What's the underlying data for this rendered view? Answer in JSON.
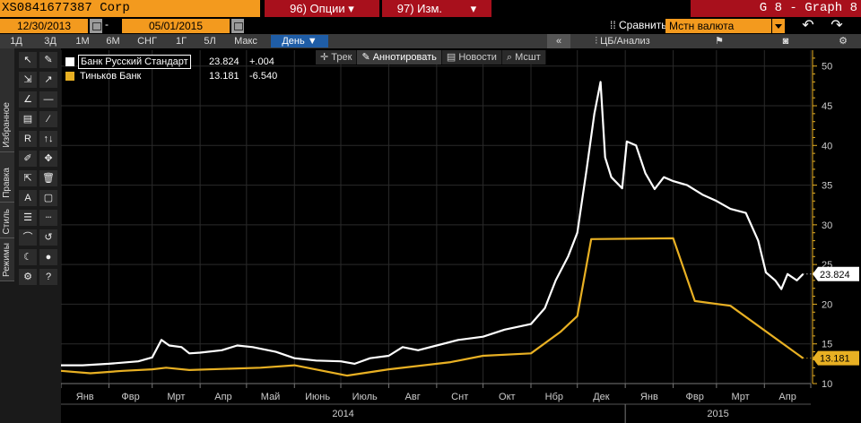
{
  "header": {
    "security": "XS0841677387 Corp",
    "options_label": "96) Опции ▾",
    "changes_label": "97) Изм.",
    "changes_arrow": "▾",
    "title": "G 8 - Graph 8"
  },
  "dates": {
    "start": "12/30/2013",
    "separator": "-",
    "end": "05/01/2015",
    "compare_label": "Сравнить",
    "currency": "Мстн валюта"
  },
  "periods": {
    "items": [
      "1Д",
      "3Д",
      "1М",
      "6М",
      "СНГ",
      "1Г",
      "5Л",
      "Макс"
    ],
    "active": "День ▼",
    "collapse": "«",
    "analysis": "ЦБ/Анализ"
  },
  "chart_tools": [
    "Трек",
    "Аннотировать",
    "Новости",
    "Мсшт"
  ],
  "sidebar_tabs": [
    "Избранное",
    "Правка",
    "Стиль",
    "Режимы"
  ],
  "tool_glyphs": [
    "↖",
    "✎",
    "⇲",
    "↗",
    "∠",
    "—",
    "▤",
    "⁄",
    "R",
    "↑↓",
    "✐",
    "✥",
    "⇱",
    "🗑",
    "A",
    "▢",
    "☰",
    "┈",
    "⌒",
    "↺",
    "☾",
    "●",
    "⚙",
    "?"
  ],
  "chart_data": {
    "type": "line",
    "x_range": [
      "2014-01-01",
      "2015-05-01"
    ],
    "ylim": [
      10,
      52
    ],
    "y_ticks": [
      10,
      15,
      20,
      25,
      30,
      35,
      40,
      45,
      50
    ],
    "month_labels": [
      "Янв",
      "Фвр",
      "Мрт",
      "Апр",
      "Май",
      "Июнь",
      "Июль",
      "Авг",
      "Снт",
      "Окт",
      "Нбр",
      "Дек",
      "Янв",
      "Фвр",
      "Мрт",
      "Апр"
    ],
    "year_labels": [
      "2014",
      "2015"
    ],
    "grid": true,
    "legend_position": "top-left",
    "series": [
      {
        "name": "Банк Русский Стандарт",
        "color": "#ffffff",
        "last": "23.824",
        "change": "+.004",
        "points": [
          [
            "2014-01-01",
            12.3
          ],
          [
            "2014-01-15",
            12.3
          ],
          [
            "2014-02-01",
            12.5
          ],
          [
            "2014-02-20",
            12.8
          ],
          [
            "2014-03-01",
            13.3
          ],
          [
            "2014-03-07",
            15.5
          ],
          [
            "2014-03-12",
            14.8
          ],
          [
            "2014-03-20",
            14.6
          ],
          [
            "2014-03-25",
            13.8
          ],
          [
            "2014-04-01",
            13.9
          ],
          [
            "2014-04-15",
            14.2
          ],
          [
            "2014-04-25",
            14.8
          ],
          [
            "2014-05-05",
            14.6
          ],
          [
            "2014-05-20",
            14.0
          ],
          [
            "2014-06-01",
            13.2
          ],
          [
            "2014-06-15",
            12.9
          ],
          [
            "2014-07-01",
            12.8
          ],
          [
            "2014-07-10",
            12.5
          ],
          [
            "2014-07-20",
            13.2
          ],
          [
            "2014-08-01",
            13.5
          ],
          [
            "2014-08-10",
            14.6
          ],
          [
            "2014-08-20",
            14.2
          ],
          [
            "2014-09-01",
            14.8
          ],
          [
            "2014-09-15",
            15.5
          ],
          [
            "2014-10-01",
            15.9
          ],
          [
            "2014-10-15",
            16.8
          ],
          [
            "2014-11-01",
            17.5
          ],
          [
            "2014-11-10",
            19.5
          ],
          [
            "2014-11-17",
            23.0
          ],
          [
            "2014-11-25",
            26.0
          ],
          [
            "2014-12-01",
            29.0
          ],
          [
            "2014-12-07",
            37.0
          ],
          [
            "2014-12-12",
            44.0
          ],
          [
            "2014-12-16",
            48.0
          ],
          [
            "2014-12-19",
            38.5
          ],
          [
            "2014-12-23",
            36.0
          ],
          [
            "2014-12-30",
            34.6
          ],
          [
            "2015-01-02",
            40.5
          ],
          [
            "2015-01-08",
            40.0
          ],
          [
            "2015-01-14",
            36.5
          ],
          [
            "2015-01-20",
            34.5
          ],
          [
            "2015-01-26",
            36.0
          ],
          [
            "2015-02-01",
            35.5
          ],
          [
            "2015-02-10",
            35.0
          ],
          [
            "2015-02-20",
            33.8
          ],
          [
            "2015-03-01",
            33.0
          ],
          [
            "2015-03-10",
            32.0
          ],
          [
            "2015-03-20",
            31.5
          ],
          [
            "2015-03-28",
            28.0
          ],
          [
            "2015-04-02",
            24.0
          ],
          [
            "2015-04-08",
            23.0
          ],
          [
            "2015-04-12",
            21.9
          ],
          [
            "2015-04-16",
            23.8
          ],
          [
            "2015-04-22",
            23.0
          ],
          [
            "2015-04-26",
            23.8
          ]
        ]
      },
      {
        "name": "Тиньков Банк",
        "color": "#e8b023",
        "last": "13.181",
        "change": "-6.540",
        "points": [
          [
            "2014-01-01",
            11.6
          ],
          [
            "2014-01-20",
            11.3
          ],
          [
            "2014-02-10",
            11.6
          ],
          [
            "2014-03-01",
            11.8
          ],
          [
            "2014-03-10",
            12.0
          ],
          [
            "2014-03-25",
            11.7
          ],
          [
            "2014-05-10",
            12.0
          ],
          [
            "2014-06-01",
            12.3
          ],
          [
            "2014-07-05",
            11.0
          ],
          [
            "2014-08-01",
            11.8
          ],
          [
            "2014-09-10",
            12.7
          ],
          [
            "2014-10-01",
            13.5
          ],
          [
            "2014-11-01",
            13.8
          ],
          [
            "2014-11-20",
            16.5
          ],
          [
            "2014-12-01",
            18.5
          ],
          [
            "2014-12-10",
            28.2
          ],
          [
            "2015-02-01",
            28.3
          ],
          [
            "2015-02-15",
            20.4
          ],
          [
            "2015-03-10",
            19.8
          ],
          [
            "2015-04-26",
            13.2
          ]
        ]
      }
    ]
  }
}
